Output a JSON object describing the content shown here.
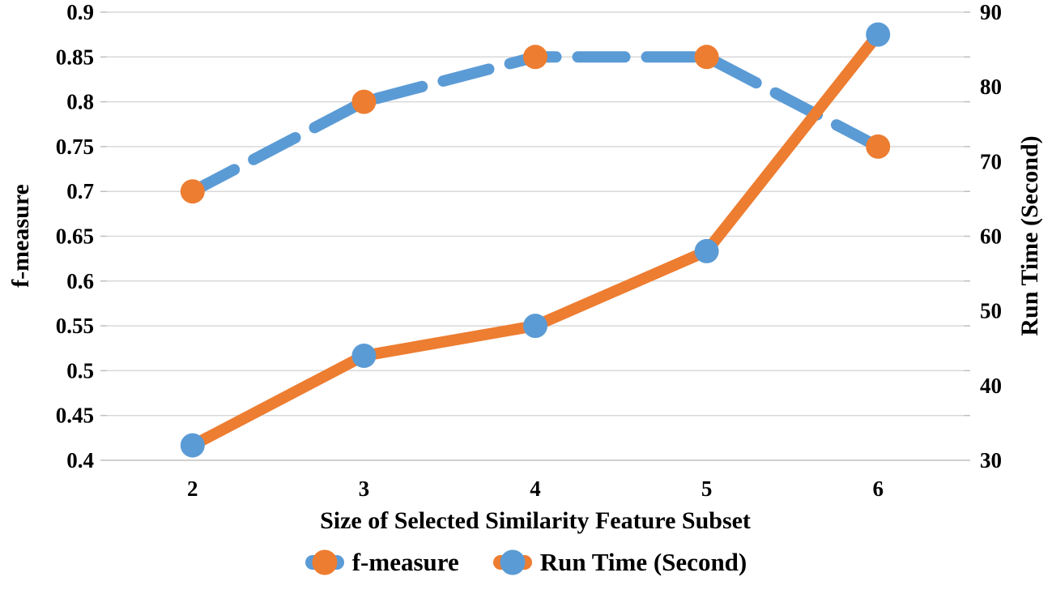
{
  "chart_data": {
    "type": "line",
    "categories": [
      "2",
      "3",
      "4",
      "5",
      "6"
    ],
    "series": [
      {
        "name": "f-measure",
        "axis": "left",
        "values": [
          0.7,
          0.8,
          0.85,
          0.85,
          0.75
        ],
        "line_style": "dashed",
        "line_color": "#5B9BD5",
        "marker_color": "#ED7D31"
      },
      {
        "name": "Run Time (Second)",
        "axis": "right",
        "values": [
          32,
          44,
          48,
          58,
          87
        ],
        "line_style": "solid",
        "line_color": "#ED7D31",
        "marker_color": "#5B9BD5"
      }
    ],
    "xlabel": "Size of Selected Similarity Feature Subset",
    "ylabel_left": "f-measure",
    "ylabel_right": "Run Time (Second)",
    "yticks_left": [
      "0.9",
      "0.85",
      "0.8",
      "0.75",
      "0.7",
      "0.65",
      "0.6",
      "0.55",
      "0.5",
      "0.45",
      "0.4"
    ],
    "yticks_right": [
      "90",
      "80",
      "70",
      "60",
      "50",
      "40",
      "30"
    ],
    "ylim_left": [
      0.4,
      0.9
    ],
    "ylim_right": [
      30,
      90
    ],
    "grid": "horizontal",
    "legend_position": "bottom",
    "colors": {
      "blue": "#5B9BD5",
      "orange": "#ED7D31",
      "gridline": "#D9D9D9",
      "gridline_bottom": "#C0C0C0",
      "tick": "#BFBFBF",
      "text": "#000000"
    }
  }
}
